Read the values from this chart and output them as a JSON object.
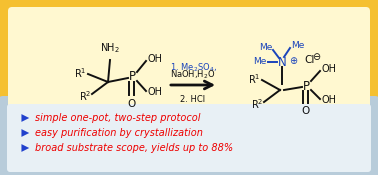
{
  "top_bg_outer": "#F5C030",
  "top_bg_inner": "#FFF8D0",
  "bottom_bg_outer": "#B8CCDA",
  "bottom_bg_inner": "#E8F0F5",
  "arrow_color": "#2040CC",
  "text_red": "#EE0000",
  "text_blue": "#1A44BB",
  "text_black": "#111111",
  "bullet_texts": [
    "simple one-pot, two-step protocol",
    "easy purification by crystallization",
    "broad substrate scope, yields up to 88%"
  ]
}
